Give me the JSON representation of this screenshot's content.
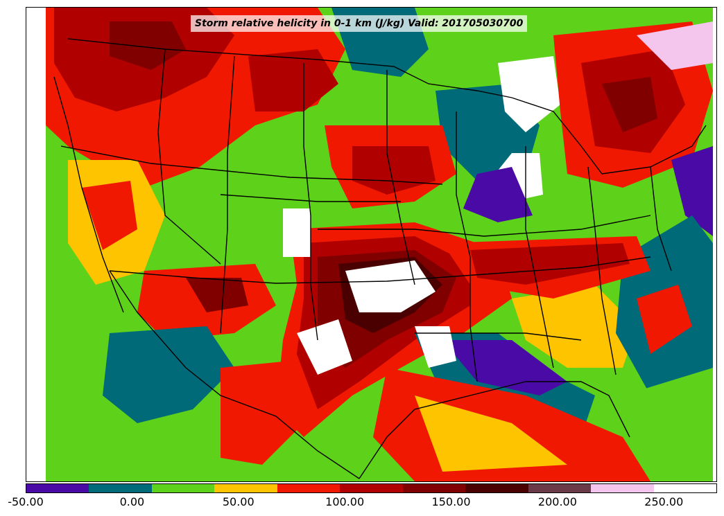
{
  "title": "Storm relative helicity in 0-1 km (J/kg) Valid: 201705030700",
  "colorbar": {
    "colors": [
      "#4a0aa6",
      "#006a78",
      "#5ed11a",
      "#ffc400",
      "#f01800",
      "#b00000",
      "#800000",
      "#4a0000",
      "#6a3a48",
      "#f4c6ee",
      "#ffffff"
    ],
    "tick_labels": [
      "-50.00",
      "0.00",
      "50.00",
      "100.00",
      "150.00",
      "200.00",
      "250.00"
    ],
    "tick_values": [
      -50,
      0,
      50,
      100,
      150,
      200,
      250
    ],
    "range": [
      -50,
      275
    ]
  }
}
